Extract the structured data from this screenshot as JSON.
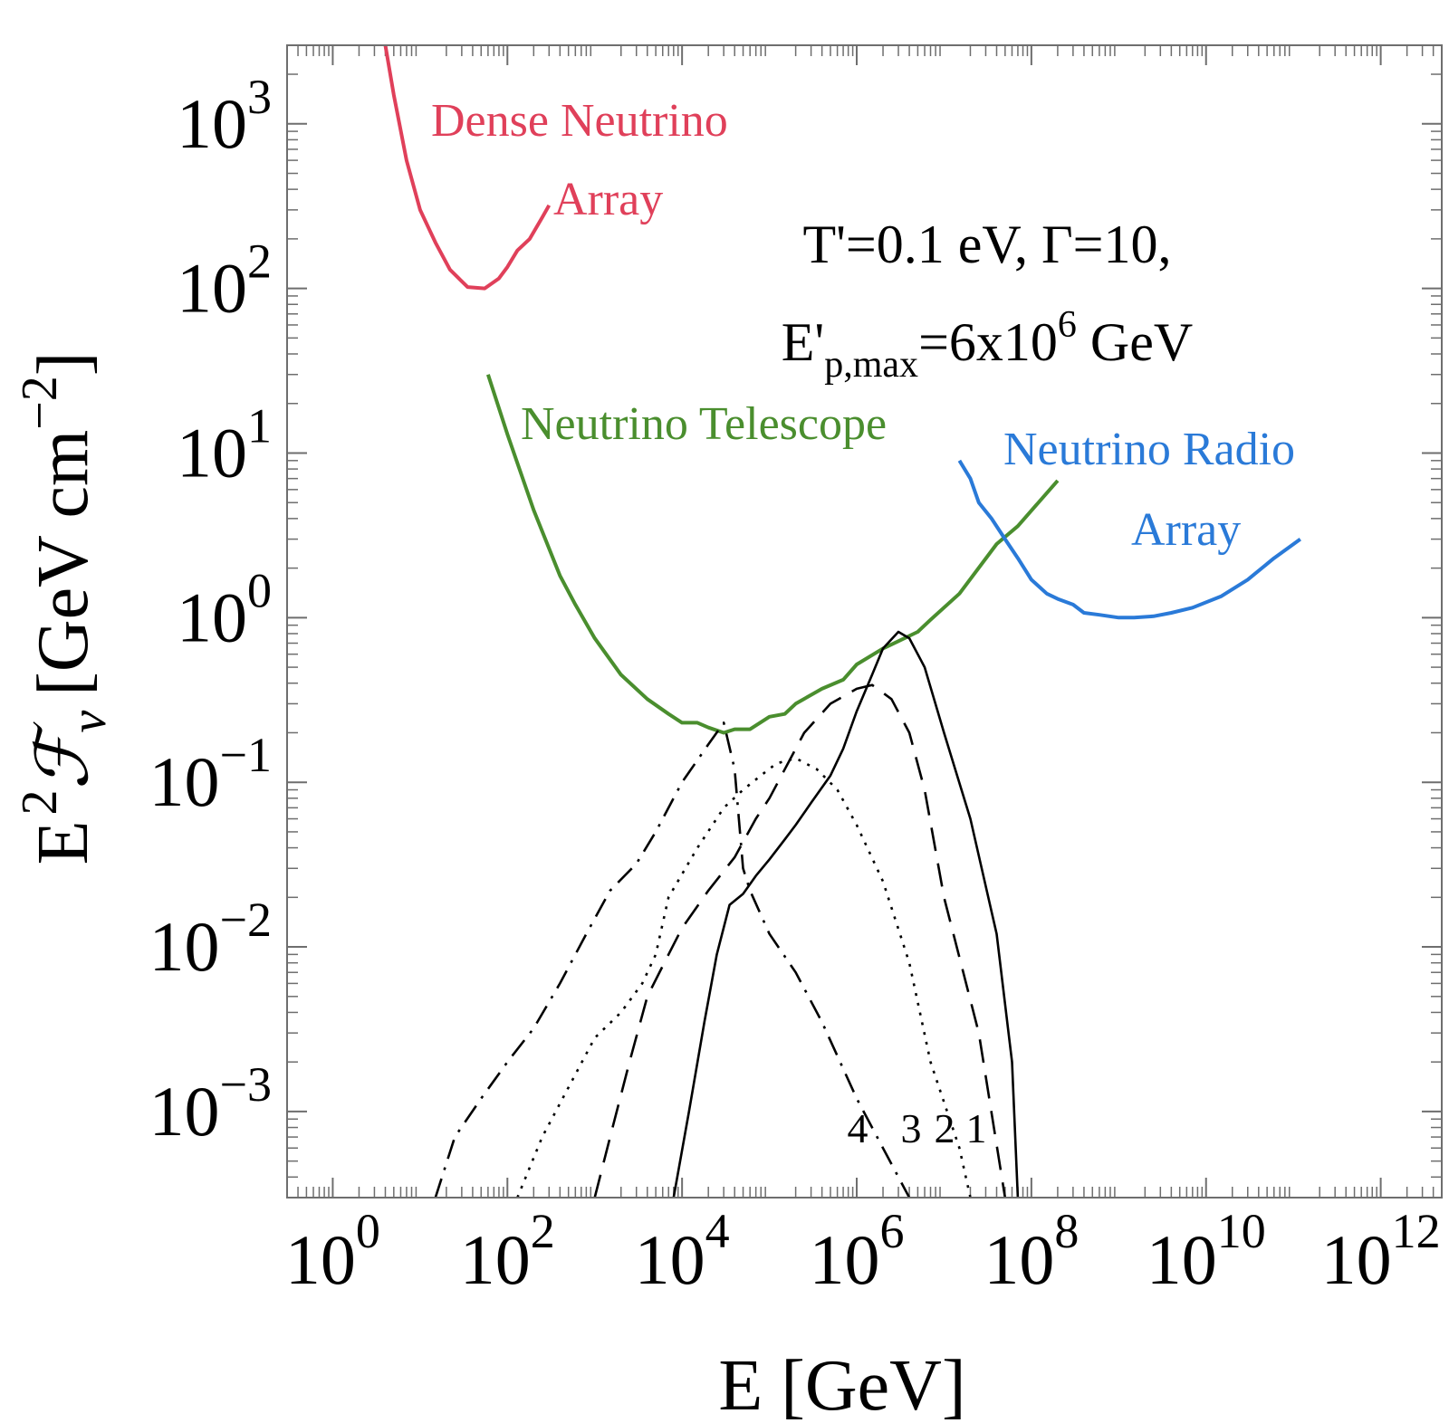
{
  "chart_data": {
    "type": "line",
    "xscale": "log",
    "yscale": "log",
    "xlim": [
      0.3,
      5000000000000.0
    ],
    "ylim": [
      0.0003,
      3000
    ],
    "xlabel": "E [GeV]",
    "ylabel": "E 2ℱν [GeV cm−2]",
    "ylabel_parts": {
      "base": "E",
      "sup": "2",
      "calF": "ℱ",
      "sub": "ν",
      "unit_open": "[GeV cm",
      "unit_sup": "−2",
      "unit_close": "]"
    },
    "xticks": [
      {
        "value": 1,
        "base": "10",
        "exp": "0"
      },
      {
        "value": 100,
        "base": "10",
        "exp": "2"
      },
      {
        "value": 10000,
        "base": "10",
        "exp": "4"
      },
      {
        "value": 1000000,
        "base": "10",
        "exp": "6"
      },
      {
        "value": 100000000,
        "base": "10",
        "exp": "8"
      },
      {
        "value": 10000000000,
        "base": "10",
        "exp": "10"
      },
      {
        "value": 1000000000000,
        "base": "10",
        "exp": "12"
      }
    ],
    "yticks": [
      {
        "value": 0.001,
        "base": "10",
        "exp": "−3"
      },
      {
        "value": 0.01,
        "base": "10",
        "exp": "−2"
      },
      {
        "value": 0.1,
        "base": "10",
        "exp": "−1"
      },
      {
        "value": 1,
        "base": "10",
        "exp": "0"
      },
      {
        "value": 10,
        "base": "10",
        "exp": "1"
      },
      {
        "value": 100,
        "base": "10",
        "exp": "2"
      },
      {
        "value": 1000,
        "base": "10",
        "exp": "3"
      }
    ],
    "annotation": {
      "line1": "T'=0.1 eV, Γ=10,",
      "line2_prefix": "E'",
      "line2_sub": "p,max",
      "line2_mid": "=6x10",
      "line2_sup": "6",
      "line2_suffix": " GeV"
    },
    "colors": {
      "dense": "#e0405a",
      "telescope": "#4a8e2e",
      "radio": "#2a7ad8",
      "curves": "#000000",
      "frame": "#6e6e6e"
    },
    "sensitivity": [
      {
        "name": "Dense Neutrino Array",
        "label_lines": [
          "Dense Neutrino",
          "Array"
        ],
        "color_key": "dense",
        "points": [
          [
            4,
            3000
          ],
          [
            5,
            1500
          ],
          [
            7,
            600
          ],
          [
            10,
            300
          ],
          [
            15,
            190
          ],
          [
            22,
            130
          ],
          [
            35,
            102
          ],
          [
            55,
            100
          ],
          [
            80,
            115
          ],
          [
            100,
            135
          ],
          [
            130,
            170
          ],
          [
            180,
            200
          ],
          [
            250,
            270
          ],
          [
            300,
            320
          ]
        ]
      },
      {
        "name": "Neutrino Telescope",
        "label_lines": [
          "Neutrino Telescope"
        ],
        "color_key": "telescope",
        "points": [
          [
            60,
            30
          ],
          [
            100,
            13
          ],
          [
            200,
            4.5
          ],
          [
            400,
            1.8
          ],
          [
            600,
            1.2
          ],
          [
            1000,
            0.75
          ],
          [
            2000,
            0.45
          ],
          [
            4000,
            0.32
          ],
          [
            7000,
            0.26
          ],
          [
            10000,
            0.23
          ],
          [
            15000,
            0.23
          ],
          [
            20000,
            0.215
          ],
          [
            30000,
            0.2
          ],
          [
            40000,
            0.21
          ],
          [
            60000,
            0.21
          ],
          [
            100000,
            0.25
          ],
          [
            150000,
            0.26
          ],
          [
            200000,
            0.3
          ],
          [
            400000,
            0.37
          ],
          [
            700000,
            0.42
          ],
          [
            1000000,
            0.52
          ],
          [
            2000000,
            0.65
          ],
          [
            3000000,
            0.72
          ],
          [
            5000000,
            0.82
          ],
          [
            7000000,
            0.97
          ],
          [
            15000000,
            1.4
          ],
          [
            40000000,
            2.8
          ],
          [
            70000000,
            3.6
          ],
          [
            200000000,
            6.8
          ]
        ]
      },
      {
        "name": "Neutrino Radio Array",
        "label_lines": [
          "Neutrino Radio",
          "Array"
        ],
        "color_key": "radio",
        "points": [
          [
            15000000,
            9
          ],
          [
            20000000,
            7
          ],
          [
            25000000,
            5
          ],
          [
            35000000,
            4
          ],
          [
            50000000,
            3.0
          ],
          [
            70000000,
            2.3
          ],
          [
            100000000,
            1.7
          ],
          [
            150000000,
            1.4
          ],
          [
            200000000,
            1.3
          ],
          [
            300000000,
            1.2
          ],
          [
            400000000,
            1.07
          ],
          [
            600000000,
            1.04
          ],
          [
            1000000000,
            1.0
          ],
          [
            1500000000,
            1.0
          ],
          [
            2500000000,
            1.02
          ],
          [
            4000000000,
            1.07
          ],
          [
            7000000000,
            1.15
          ],
          [
            15000000000,
            1.35
          ],
          [
            30000000000,
            1.7
          ],
          [
            60000000000,
            2.3
          ],
          [
            120000000000,
            3.0
          ]
        ]
      }
    ],
    "series": [
      {
        "name": "1",
        "label": "1",
        "style": "solid",
        "points": [
          [
            8000,
            0.0003
          ],
          [
            12000,
            0.001
          ],
          [
            18000,
            0.0035
          ],
          [
            25000,
            0.009
          ],
          [
            35000,
            0.018
          ],
          [
            50000,
            0.021
          ],
          [
            70000,
            0.027
          ],
          [
            100000,
            0.034
          ],
          [
            150000,
            0.045
          ],
          [
            200000,
            0.055
          ],
          [
            300000,
            0.075
          ],
          [
            500000,
            0.11
          ],
          [
            700000,
            0.16
          ],
          [
            1000000,
            0.27
          ],
          [
            1500000,
            0.45
          ],
          [
            2000000,
            0.65
          ],
          [
            3000000,
            0.82
          ],
          [
            4000000,
            0.75
          ],
          [
            6000000,
            0.5
          ],
          [
            10000000,
            0.2
          ],
          [
            20000000,
            0.06
          ],
          [
            40000000,
            0.012
          ],
          [
            60000000,
            0.002
          ],
          [
            70000000,
            0.0003
          ]
        ]
      },
      {
        "name": "2",
        "label": "2",
        "style": "dashed",
        "points": [
          [
            1000,
            0.0003
          ],
          [
            1500,
            0.0007
          ],
          [
            2500,
            0.002
          ],
          [
            4000,
            0.005
          ],
          [
            7000,
            0.009
          ],
          [
            10000,
            0.013
          ],
          [
            20000,
            0.022
          ],
          [
            40000,
            0.035
          ],
          [
            70000,
            0.06
          ],
          [
            100000,
            0.08
          ],
          [
            150000,
            0.12
          ],
          [
            250000,
            0.2
          ],
          [
            500000,
            0.3
          ],
          [
            1000000,
            0.37
          ],
          [
            1500000,
            0.39
          ],
          [
            2500000,
            0.32
          ],
          [
            4000000,
            0.2
          ],
          [
            6000000,
            0.09
          ],
          [
            10000000,
            0.02
          ],
          [
            25000000,
            0.003
          ],
          [
            50000000,
            0.0003
          ]
        ]
      },
      {
        "name": "3",
        "label": "3",
        "style": "dotted",
        "points": [
          [
            130,
            0.0003
          ],
          [
            250,
            0.0007
          ],
          [
            500,
            0.0014
          ],
          [
            1000,
            0.0028
          ],
          [
            2000,
            0.004
          ],
          [
            3500,
            0.006
          ],
          [
            5000,
            0.009
          ],
          [
            7000,
            0.02
          ],
          [
            15000,
            0.04
          ],
          [
            30000,
            0.07
          ],
          [
            50000,
            0.09
          ],
          [
            80000,
            0.11
          ],
          [
            120000,
            0.13
          ],
          [
            200000,
            0.14
          ],
          [
            350000,
            0.12
          ],
          [
            600000,
            0.09
          ],
          [
            1000000,
            0.055
          ],
          [
            2000000,
            0.025
          ],
          [
            4000000,
            0.008
          ],
          [
            7000000,
            0.002
          ],
          [
            15000000,
            0.0006
          ],
          [
            20000000,
            0.0003
          ]
        ]
      },
      {
        "name": "4",
        "label": "4",
        "style": "dashdot",
        "points": [
          [
            15,
            0.0003
          ],
          [
            25,
            0.0007
          ],
          [
            50,
            0.0012
          ],
          [
            100,
            0.002
          ],
          [
            200,
            0.0032
          ],
          [
            400,
            0.006
          ],
          [
            800,
            0.012
          ],
          [
            1500,
            0.022
          ],
          [
            3000,
            0.032
          ],
          [
            5000,
            0.05
          ],
          [
            10000,
            0.1
          ],
          [
            20000,
            0.17
          ],
          [
            30000,
            0.23
          ],
          [
            40000,
            0.12
          ],
          [
            50000,
            0.03
          ],
          [
            60000,
            0.022
          ],
          [
            100000,
            0.012
          ],
          [
            200000,
            0.007
          ],
          [
            400000,
            0.0035
          ],
          [
            1000000,
            0.0012
          ],
          [
            2000000,
            0.0006
          ],
          [
            4000000,
            0.0003
          ]
        ]
      }
    ]
  }
}
